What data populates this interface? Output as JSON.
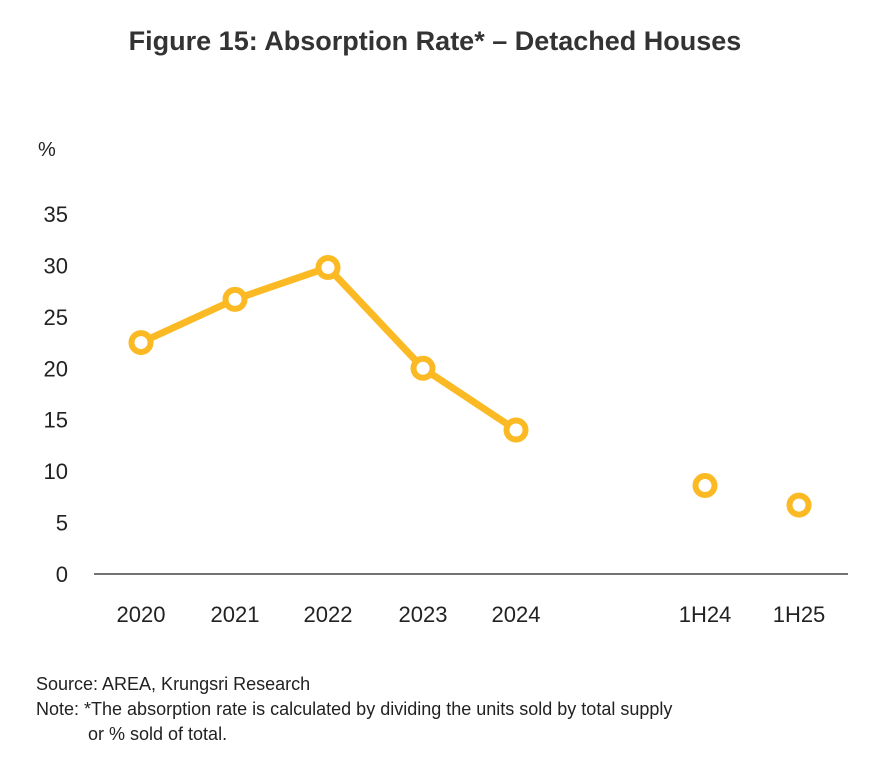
{
  "title": "Figure 15: Absorption Rate* – Detached Houses",
  "chart_data": {
    "type": "line",
    "title": "Figure 15: Absorption Rate* – Detached Houses",
    "ylabel": "%",
    "xlabel": "",
    "categories": [
      "2020",
      "2021",
      "2022",
      "2023",
      "2024",
      "1H24",
      "1H25"
    ],
    "series": [
      {
        "values": [
          22.5,
          26.7,
          29.8,
          20.0,
          14.0,
          null,
          null
        ],
        "connected": true
      },
      {
        "values": [
          null,
          null,
          null,
          null,
          null,
          8.6,
          6.7
        ],
        "connected": false
      }
    ],
    "ylim": [
      0,
      35
    ],
    "yticks": [
      "0",
      "5",
      "10",
      "15",
      "20",
      "25",
      "30",
      "35"
    ],
    "grid": false,
    "legend": "none",
    "colors": {
      "series": "#FBBA23",
      "axis": "#222222",
      "text": "#222222"
    }
  },
  "footer": {
    "source": "Source: AREA, Krungsri Research",
    "note_line1": "Note: *The absorption rate is calculated by dividing the units sold by total supply",
    "note_line2": "or % sold of total."
  }
}
